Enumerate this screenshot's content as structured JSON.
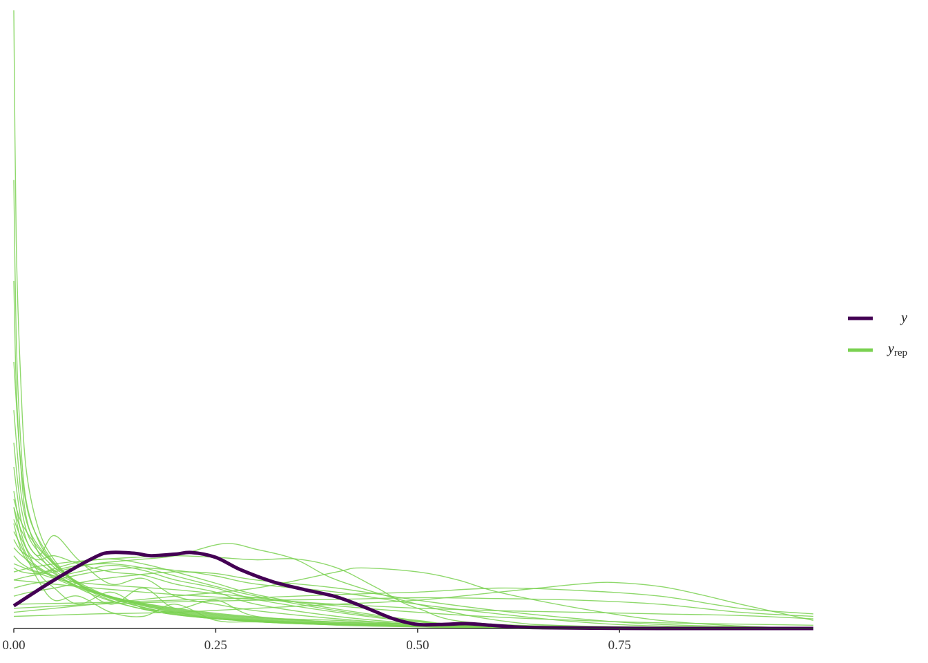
{
  "chart_data": {
    "type": "line",
    "title": "",
    "xlabel": "",
    "ylabel": "",
    "xlim": [
      0,
      0.99
    ],
    "ylim": [
      0,
      7.65
    ],
    "x_ticks": [
      0,
      0.25,
      0.5,
      0.75
    ],
    "x_tick_labels": [
      "0.00",
      "0.25",
      "0.50",
      "0.75"
    ],
    "y_axis_shown": false,
    "grid": false,
    "legend": {
      "position": "right",
      "entries": [
        {
          "symbol": "y",
          "subscript": "",
          "color": "#440154"
        },
        {
          "symbol": "y",
          "subscript": "rep",
          "color": "#7ad151"
        }
      ]
    },
    "observed": {
      "legend_index": 0,
      "color": "#440154",
      "x": [
        0,
        0.05,
        0.1,
        0.12,
        0.15,
        0.17,
        0.2,
        0.22,
        0.25,
        0.28,
        0.32,
        0.36,
        0.4,
        0.44,
        0.47,
        0.5,
        0.53,
        0.56,
        0.59,
        0.62,
        0.65,
        0.7,
        0.8,
        0.9,
        0.99
      ],
      "y": [
        0.28,
        0.6,
        0.88,
        0.94,
        0.93,
        0.9,
        0.92,
        0.94,
        0.88,
        0.73,
        0.58,
        0.48,
        0.39,
        0.24,
        0.12,
        0.05,
        0.05,
        0.06,
        0.04,
        0.02,
        0.01,
        0.005,
        0,
        0,
        0
      ]
    },
    "replicates": {
      "legend_index": 1,
      "color": "#7ad151",
      "draws": [
        {
          "x": [
            0,
            0.003,
            0.008,
            0.015,
            0.03,
            0.05,
            0.08,
            0.12,
            0.18,
            0.25,
            0.35,
            0.5,
            0.7,
            0.99
          ],
          "y": [
            7.65,
            4.8,
            3.2,
            2.0,
            1.25,
            0.85,
            0.55,
            0.35,
            0.2,
            0.12,
            0.06,
            0.03,
            0.01,
            0
          ]
        },
        {
          "x": [
            0,
            0.003,
            0.008,
            0.015,
            0.03,
            0.05,
            0.08,
            0.12,
            0.18,
            0.25,
            0.35,
            0.5,
            0.7,
            0.99
          ],
          "y": [
            5.55,
            3.6,
            2.4,
            1.6,
            1.1,
            0.8,
            0.55,
            0.38,
            0.22,
            0.13,
            0.07,
            0.03,
            0.01,
            0
          ]
        },
        {
          "x": [
            0,
            0.003,
            0.008,
            0.015,
            0.03,
            0.05,
            0.08,
            0.12,
            0.18,
            0.25,
            0.35,
            0.5,
            0.7,
            0.99
          ],
          "y": [
            4.3,
            3.0,
            2.1,
            1.4,
            0.95,
            0.7,
            0.5,
            0.34,
            0.2,
            0.12,
            0.06,
            0.03,
            0.01,
            0
          ]
        },
        {
          "x": [
            0,
            0.005,
            0.01,
            0.02,
            0.04,
            0.06,
            0.09,
            0.13,
            0.2,
            0.28,
            0.4,
            0.6,
            0.99
          ],
          "y": [
            3.3,
            2.5,
            1.9,
            1.35,
            0.95,
            0.72,
            0.5,
            0.34,
            0.18,
            0.1,
            0.05,
            0.02,
            0
          ]
        },
        {
          "x": [
            0,
            0.005,
            0.01,
            0.02,
            0.04,
            0.06,
            0.09,
            0.13,
            0.2,
            0.28,
            0.4,
            0.6,
            0.99
          ],
          "y": [
            2.7,
            2.1,
            1.6,
            1.2,
            0.9,
            0.7,
            0.52,
            0.36,
            0.2,
            0.11,
            0.05,
            0.02,
            0
          ]
        },
        {
          "x": [
            0,
            0.005,
            0.01,
            0.02,
            0.04,
            0.06,
            0.09,
            0.13,
            0.2,
            0.28,
            0.4,
            0.6,
            0.99
          ],
          "y": [
            2.3,
            1.8,
            1.45,
            1.1,
            0.85,
            0.68,
            0.5,
            0.36,
            0.21,
            0.12,
            0.06,
            0.02,
            0
          ]
        },
        {
          "x": [
            0,
            0.005,
            0.01,
            0.02,
            0.04,
            0.06,
            0.09,
            0.13,
            0.2,
            0.28,
            0.4,
            0.6,
            0.99
          ],
          "y": [
            2.0,
            1.6,
            1.3,
            1.0,
            0.8,
            0.65,
            0.5,
            0.37,
            0.22,
            0.13,
            0.06,
            0.02,
            0
          ]
        },
        {
          "x": [
            0,
            0.005,
            0.01,
            0.02,
            0.04,
            0.06,
            0.09,
            0.13,
            0.2,
            0.28,
            0.4,
            0.6,
            0.99
          ],
          "y": [
            1.7,
            1.4,
            1.15,
            0.92,
            0.75,
            0.62,
            0.48,
            0.36,
            0.23,
            0.14,
            0.07,
            0.02,
            0
          ]
        },
        {
          "x": [
            0,
            0.005,
            0.01,
            0.02,
            0.04,
            0.06,
            0.09,
            0.13,
            0.2,
            0.28,
            0.4,
            0.6,
            0.99
          ],
          "y": [
            1.5,
            1.25,
            1.05,
            0.85,
            0.7,
            0.6,
            0.48,
            0.37,
            0.24,
            0.15,
            0.08,
            0.03,
            0
          ]
        },
        {
          "x": [
            0,
            0.005,
            0.01,
            0.02,
            0.04,
            0.06,
            0.09,
            0.13,
            0.2,
            0.28,
            0.4,
            0.6,
            0.99
          ],
          "y": [
            1.3,
            1.1,
            0.95,
            0.8,
            0.68,
            0.58,
            0.47,
            0.37,
            0.25,
            0.16,
            0.08,
            0.03,
            0
          ]
        },
        {
          "x": [
            0,
            0.01,
            0.03,
            0.05,
            0.08,
            0.12,
            0.16,
            0.2,
            0.25,
            0.3,
            0.4,
            0.5,
            0.6,
            0.99
          ],
          "y": [
            1.5,
            1.2,
            0.9,
            1.15,
            0.85,
            0.55,
            0.62,
            0.4,
            0.3,
            0.22,
            0.12,
            0.05,
            0.02,
            0
          ]
        },
        {
          "x": [
            0,
            0.01,
            0.03,
            0.05,
            0.08,
            0.12,
            0.16,
            0.2,
            0.25,
            0.3,
            0.4,
            0.5,
            0.6,
            0.99
          ],
          "y": [
            1.1,
            0.95,
            0.85,
            0.9,
            0.8,
            0.7,
            0.66,
            0.55,
            0.45,
            0.3,
            0.15,
            0.06,
            0.02,
            0
          ]
        },
        {
          "x": [
            0,
            0.01,
            0.03,
            0.05,
            0.08,
            0.12,
            0.16,
            0.2,
            0.25,
            0.3,
            0.4,
            0.5,
            0.6,
            0.99
          ],
          "y": [
            1.0,
            0.9,
            0.75,
            0.65,
            0.7,
            0.78,
            0.72,
            0.6,
            0.5,
            0.36,
            0.2,
            0.08,
            0.03,
            0
          ]
        },
        {
          "x": [
            0,
            0.01,
            0.03,
            0.05,
            0.08,
            0.12,
            0.16,
            0.2,
            0.25,
            0.3,
            0.4,
            0.5,
            0.6,
            0.99
          ],
          "y": [
            0.9,
            0.8,
            0.7,
            0.72,
            0.78,
            0.8,
            0.75,
            0.65,
            0.52,
            0.4,
            0.22,
            0.09,
            0.03,
            0
          ]
        },
        {
          "x": [
            0,
            0.01,
            0.03,
            0.05,
            0.08,
            0.12,
            0.16,
            0.2,
            0.25,
            0.3,
            0.4,
            0.5,
            0.6,
            0.99
          ],
          "y": [
            0.75,
            0.7,
            0.68,
            0.74,
            0.82,
            0.86,
            0.8,
            0.7,
            0.56,
            0.42,
            0.24,
            0.1,
            0.03,
            0
          ]
        },
        {
          "x": [
            0,
            0.01,
            0.03,
            0.05,
            0.08,
            0.12,
            0.16,
            0.2,
            0.25,
            0.3,
            0.4,
            0.5,
            0.6,
            0.99
          ],
          "y": [
            1.6,
            1.3,
            1.0,
            0.8,
            0.55,
            0.3,
            0.5,
            0.25,
            0.35,
            0.15,
            0.1,
            0.05,
            0.01,
            0
          ]
        },
        {
          "x": [
            0,
            0.01,
            0.03,
            0.05,
            0.08,
            0.12,
            0.16,
            0.2,
            0.25,
            0.3,
            0.4,
            0.5,
            0.6,
            0.99
          ],
          "y": [
            1.2,
            1.0,
            0.6,
            0.35,
            0.4,
            0.2,
            0.15,
            0.3,
            0.1,
            0.08,
            0.05,
            0.02,
            0.01,
            0
          ]
        },
        {
          "x": [
            0,
            0.01,
            0.03,
            0.05,
            0.08,
            0.12,
            0.16,
            0.2,
            0.25,
            0.3,
            0.4,
            0.5,
            0.6,
            0.99
          ],
          "y": [
            1.35,
            1.1,
            0.7,
            0.5,
            0.3,
            0.45,
            0.25,
            0.2,
            0.12,
            0.1,
            0.04,
            0.02,
            0.01,
            0
          ]
        },
        {
          "x": [
            0,
            0.02,
            0.05,
            0.1,
            0.15,
            0.2,
            0.25,
            0.3,
            0.4,
            0.5,
            0.6,
            0.7,
            0.8,
            0.99
          ],
          "y": [
            0.5,
            0.55,
            0.6,
            0.7,
            0.75,
            0.72,
            0.65,
            0.55,
            0.45,
            0.3,
            0.18,
            0.08,
            0.03,
            0
          ]
        },
        {
          "x": [
            0,
            0.02,
            0.05,
            0.1,
            0.15,
            0.2,
            0.25,
            0.3,
            0.4,
            0.5,
            0.6,
            0.7,
            0.8,
            0.99
          ],
          "y": [
            0.4,
            0.45,
            0.5,
            0.6,
            0.66,
            0.7,
            0.68,
            0.6,
            0.5,
            0.35,
            0.22,
            0.12,
            0.05,
            0
          ]
        },
        {
          "x": [
            0,
            0.02,
            0.05,
            0.1,
            0.15,
            0.2,
            0.26,
            0.3,
            0.35,
            0.4,
            0.5,
            0.6,
            0.7,
            0.99
          ],
          "y": [
            0.6,
            0.65,
            0.7,
            0.8,
            0.85,
            0.9,
            1.05,
            0.98,
            0.85,
            0.6,
            0.3,
            0.1,
            0.03,
            0
          ]
        },
        {
          "x": [
            0,
            0.02,
            0.05,
            0.1,
            0.15,
            0.2,
            0.25,
            0.3,
            0.35,
            0.4,
            0.45,
            0.5,
            0.6,
            0.99
          ],
          "y": [
            0.7,
            0.75,
            0.8,
            0.85,
            0.88,
            0.9,
            0.88,
            0.85,
            0.86,
            0.75,
            0.5,
            0.25,
            0.05,
            0
          ]
        },
        {
          "x": [
            0,
            0.05,
            0.1,
            0.2,
            0.3,
            0.4,
            0.43,
            0.5,
            0.55,
            0.6,
            0.7,
            0.8,
            0.9,
            0.99
          ],
          "y": [
            0.2,
            0.25,
            0.3,
            0.4,
            0.5,
            0.7,
            0.75,
            0.7,
            0.6,
            0.45,
            0.25,
            0.1,
            0.03,
            0
          ]
        },
        {
          "x": [
            0,
            0.1,
            0.2,
            0.3,
            0.4,
            0.5,
            0.6,
            0.65,
            0.7,
            0.74,
            0.8,
            0.85,
            0.9,
            0.99
          ],
          "y": [
            0.15,
            0.18,
            0.2,
            0.25,
            0.3,
            0.35,
            0.45,
            0.5,
            0.55,
            0.57,
            0.52,
            0.42,
            0.3,
            0.1
          ]
        },
        {
          "x": [
            0,
            0.1,
            0.2,
            0.3,
            0.4,
            0.5,
            0.6,
            0.7,
            0.8,
            0.9,
            0.99
          ],
          "y": [
            0.3,
            0.32,
            0.35,
            0.38,
            0.42,
            0.45,
            0.5,
            0.47,
            0.4,
            0.25,
            0.18
          ]
        },
        {
          "x": [
            0,
            0.1,
            0.2,
            0.3,
            0.4,
            0.5,
            0.6,
            0.7,
            0.8,
            0.9,
            0.99
          ],
          "y": [
            0.25,
            0.3,
            0.33,
            0.35,
            0.36,
            0.38,
            0.37,
            0.35,
            0.3,
            0.2,
            0.15
          ]
        },
        {
          "x": [
            0,
            0.1,
            0.2,
            0.3,
            0.4,
            0.5,
            0.6,
            0.7,
            0.8,
            0.9,
            0.99
          ],
          "y": [
            0.6,
            0.5,
            0.42,
            0.36,
            0.3,
            0.25,
            0.22,
            0.2,
            0.18,
            0.16,
            0.12
          ]
        },
        {
          "x": [
            0,
            0.05,
            0.1,
            0.2,
            0.3,
            0.4,
            0.5,
            0.6,
            0.7,
            0.8,
            0.99
          ],
          "y": [
            0.8,
            0.62,
            0.55,
            0.48,
            0.38,
            0.28,
            0.2,
            0.14,
            0.1,
            0.07,
            0.04
          ]
        }
      ]
    }
  }
}
